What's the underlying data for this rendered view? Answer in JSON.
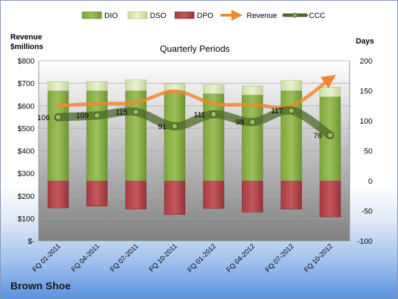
{
  "chart_data": {
    "type": "bar",
    "title": "Quarterly Periods",
    "company": "Brown Shoe",
    "left_axis": {
      "label_line1": "Revenue",
      "label_line2": "$millions",
      "range": [
        0,
        800
      ],
      "ticks": [
        "$-",
        "$100",
        "$200",
        "$300",
        "$400",
        "$500",
        "$600",
        "$700",
        "$800"
      ]
    },
    "right_axis": {
      "label": "Days",
      "range": [
        -100,
        200
      ],
      "ticks": [
        "-100",
        "-50",
        "0",
        "50",
        "100",
        "150",
        "200"
      ]
    },
    "categories": [
      "FQ 01-2011",
      "FQ 04-2011",
      "FQ 07-2011",
      "FQ 10-2011",
      "FQ 01-2012",
      "FQ 04-2012",
      "FQ 07-2012",
      "FQ 10-2012"
    ],
    "legend": [
      "DIO",
      "DSO",
      "DPO",
      "Revenue",
      "CCC"
    ],
    "series": [
      {
        "name": "DIO",
        "axis": "days",
        "values": [
          150,
          150,
          150,
          150,
          145,
          143,
          150,
          140
        ]
      },
      {
        "name": "DSO",
        "axis": "days",
        "values": [
          15,
          15,
          18,
          12,
          15,
          15,
          17,
          16
        ]
      },
      {
        "name": "DPO",
        "axis": "days",
        "values": [
          -45,
          -42,
          -47,
          -56,
          -46,
          -52,
          -47,
          -60
        ]
      },
      {
        "name": "Revenue",
        "axis": "revenue",
        "values": [
          600,
          610,
          615,
          665,
          610,
          605,
          600,
          720
        ]
      },
      {
        "name": "CCC",
        "axis": "days",
        "values": [
          106,
          109,
          115,
          91,
          111,
          98,
          117,
          76
        ]
      }
    ],
    "ccc_labels": [
      "106",
      "109",
      "115",
      "91",
      "111",
      "98",
      "117",
      "76"
    ],
    "colors": {
      "dio": "#8cb14a",
      "dso": "#dbe8b8",
      "dpo": "#b9444a",
      "revenue": "#f0882e",
      "ccc": "#4c6a2a",
      "plot_top": "#ffffff",
      "plot_bottom": "#7f7f7f"
    },
    "grid": true
  }
}
